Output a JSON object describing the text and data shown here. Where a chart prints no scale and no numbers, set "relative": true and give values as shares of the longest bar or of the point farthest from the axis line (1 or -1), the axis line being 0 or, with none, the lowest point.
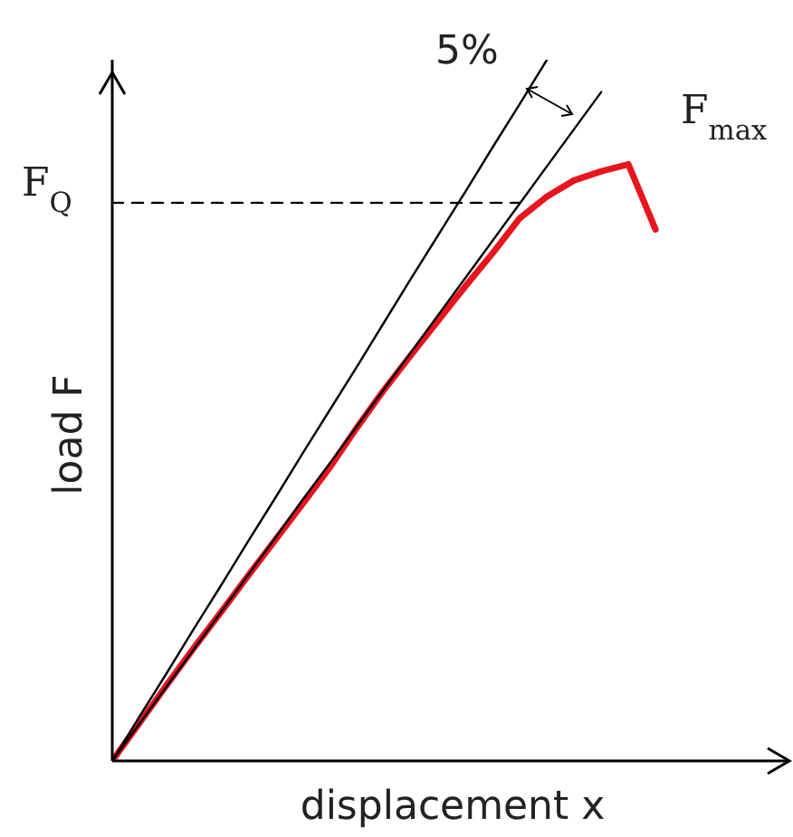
{
  "chart_data": {
    "type": "line",
    "relative": true,
    "xlabel": "displacement x",
    "ylabel": "load F",
    "marker": "none",
    "grid": false,
    "legend": false,
    "categories": [
      null,
      null,
      null,
      null,
      null,
      null,
      null,
      null,
      null,
      null,
      null,
      null,
      null,
      null,
      null,
      null,
      null,
      null,
      null,
      null,
      null
    ],
    "series": [
      {
        "color": "#e8141e",
        "values": [
          0,
          0.054,
          0.108,
          0.161,
          0.212,
          0.264,
          0.315,
          0.366,
          0.418,
          0.475,
          0.529,
          0.579,
          0.628,
          0.677,
          0.724,
          0.774,
          0.805,
          0.828,
          0.841,
          0.851,
          0.758
        ]
      },
      {
        "color": "#000000",
        "values": [
          0,
          0.063,
          0.125,
          0.188,
          0.25,
          0.313,
          0.375,
          0.438,
          0.5,
          0.562,
          0.625,
          0.688,
          0.75,
          0.812,
          0.875,
          0.937,
          1,
          null,
          null,
          null,
          null
        ]
      },
      {
        "color": "#000000",
        "values": [
          0,
          0.053,
          0.106,
          0.159,
          0.212,
          0.265,
          0.318,
          0.372,
          0.424,
          0.477,
          0.53,
          0.583,
          0.636,
          0.689,
          0.742,
          0.795,
          0.848,
          0.901,
          0.954,
          null,
          null
        ]
      },
      {
        "color": "#000000",
        "line_style": "dashed",
        "values": [
          0.796,
          0.796,
          0.796,
          0.796,
          0.796,
          0.796,
          0.796,
          0.796,
          0.796,
          0.796,
          0.796,
          0.796,
          0.796,
          0.796,
          0.796,
          0.796,
          null,
          null,
          null,
          null,
          null
        ]
      }
    ],
    "annotations": [
      "5%",
      "F$_{max}$",
      "F$_{Q}$"
    ]
  }
}
